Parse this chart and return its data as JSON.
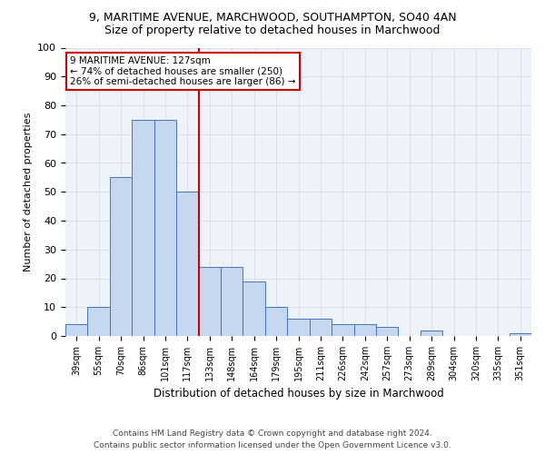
{
  "title1": "9, MARITIME AVENUE, MARCHWOOD, SOUTHAMPTON, SO40 4AN",
  "title2": "Size of property relative to detached houses in Marchwood",
  "xlabel": "Distribution of detached houses by size in Marchwood",
  "ylabel": "Number of detached properties",
  "categories": [
    "39sqm",
    "55sqm",
    "70sqm",
    "86sqm",
    "101sqm",
    "117sqm",
    "133sqm",
    "148sqm",
    "164sqm",
    "179sqm",
    "195sqm",
    "211sqm",
    "226sqm",
    "242sqm",
    "257sqm",
    "273sqm",
    "289sqm",
    "304sqm",
    "320sqm",
    "335sqm",
    "351sqm"
  ],
  "values": [
    4,
    10,
    55,
    75,
    75,
    50,
    24,
    24,
    19,
    10,
    6,
    6,
    4,
    4,
    3,
    0,
    2,
    0,
    0,
    0,
    1
  ],
  "bar_color": "#c5d8f0",
  "bar_edge_color": "#4472c4",
  "red_line_index": 5,
  "annotation_line1": "9 MARITIME AVENUE: 127sqm",
  "annotation_line2": "← 74% of detached houses are smaller (250)",
  "annotation_line3": "26% of semi-detached houses are larger (86) →",
  "annotation_box_color": "#ffffff",
  "annotation_box_edge_color": "#cc0000",
  "red_line_color": "#cc0000",
  "ylim": [
    0,
    100
  ],
  "yticks": [
    0,
    10,
    20,
    30,
    40,
    50,
    60,
    70,
    80,
    90,
    100
  ],
  "grid_color": "#d0d8e8",
  "bg_color": "#eef2f9",
  "title1_fontsize": 9,
  "title2_fontsize": 9,
  "footer1": "Contains HM Land Registry data © Crown copyright and database right 2024.",
  "footer2": "Contains public sector information licensed under the Open Government Licence v3.0."
}
